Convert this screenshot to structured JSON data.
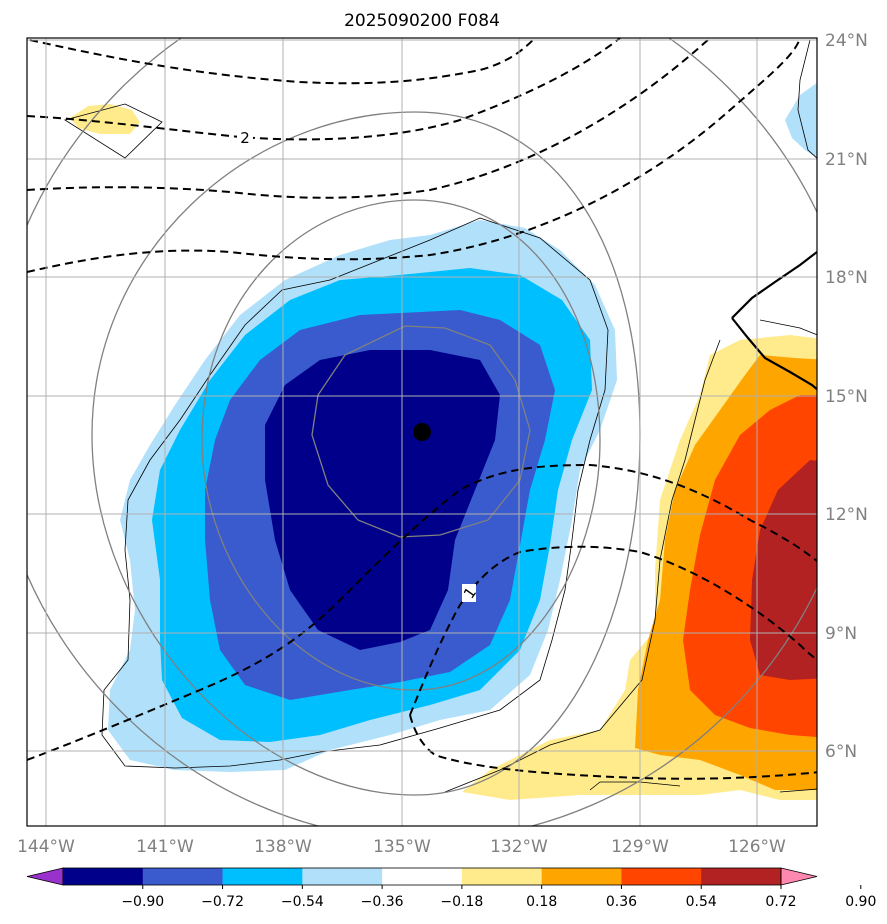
{
  "title": "2025090200 F084",
  "chart_data": {
    "type": "heatmap",
    "title": "2025090200 F084",
    "projection": "lat-lon",
    "xlim": [
      -145,
      -124
    ],
    "ylim": [
      4,
      24
    ],
    "lon_ticks": [
      {
        "value": -144,
        "label": "144°W"
      },
      {
        "value": -141,
        "label": "141°W"
      },
      {
        "value": -138,
        "label": "138°W"
      },
      {
        "value": -135,
        "label": "135°W"
      },
      {
        "value": -132,
        "label": "132°W"
      },
      {
        "value": -129,
        "label": "129°W"
      },
      {
        "value": -126,
        "label": "126°W"
      }
    ],
    "lat_ticks": [
      {
        "value": 24,
        "label": "24°N"
      },
      {
        "value": 21,
        "label": "21°N"
      },
      {
        "value": 18,
        "label": "18°N"
      },
      {
        "value": 15,
        "label": "15°N"
      },
      {
        "value": 12,
        "label": "12°N"
      },
      {
        "value": 9,
        "label": "9°N"
      },
      {
        "value": 6,
        "label": "6°N"
      }
    ],
    "storm_center": {
      "lon": -134.5,
      "lat": 14.1
    },
    "contour_labels": [
      {
        "text": "2",
        "lon": -139.0,
        "lat": 21.5
      },
      {
        "text": "1",
        "lon": -133.2,
        "lat": 10.0
      }
    ],
    "colorbar": {
      "levels": [
        "−0.90",
        "−0.72",
        "−0.54",
        "−0.36",
        "−0.18",
        "0.18",
        "0.36",
        "0.54",
        "0.72",
        "0.90"
      ],
      "colors": [
        "#9932cc",
        "#00008b",
        "#3a5bcd",
        "#00bfff",
        "#b0e0fa",
        "#ffffff",
        "#ffeb8c",
        "#ffa500",
        "#ff4500",
        "#b22222",
        "#ff88b0"
      ],
      "extend": "both"
    }
  }
}
